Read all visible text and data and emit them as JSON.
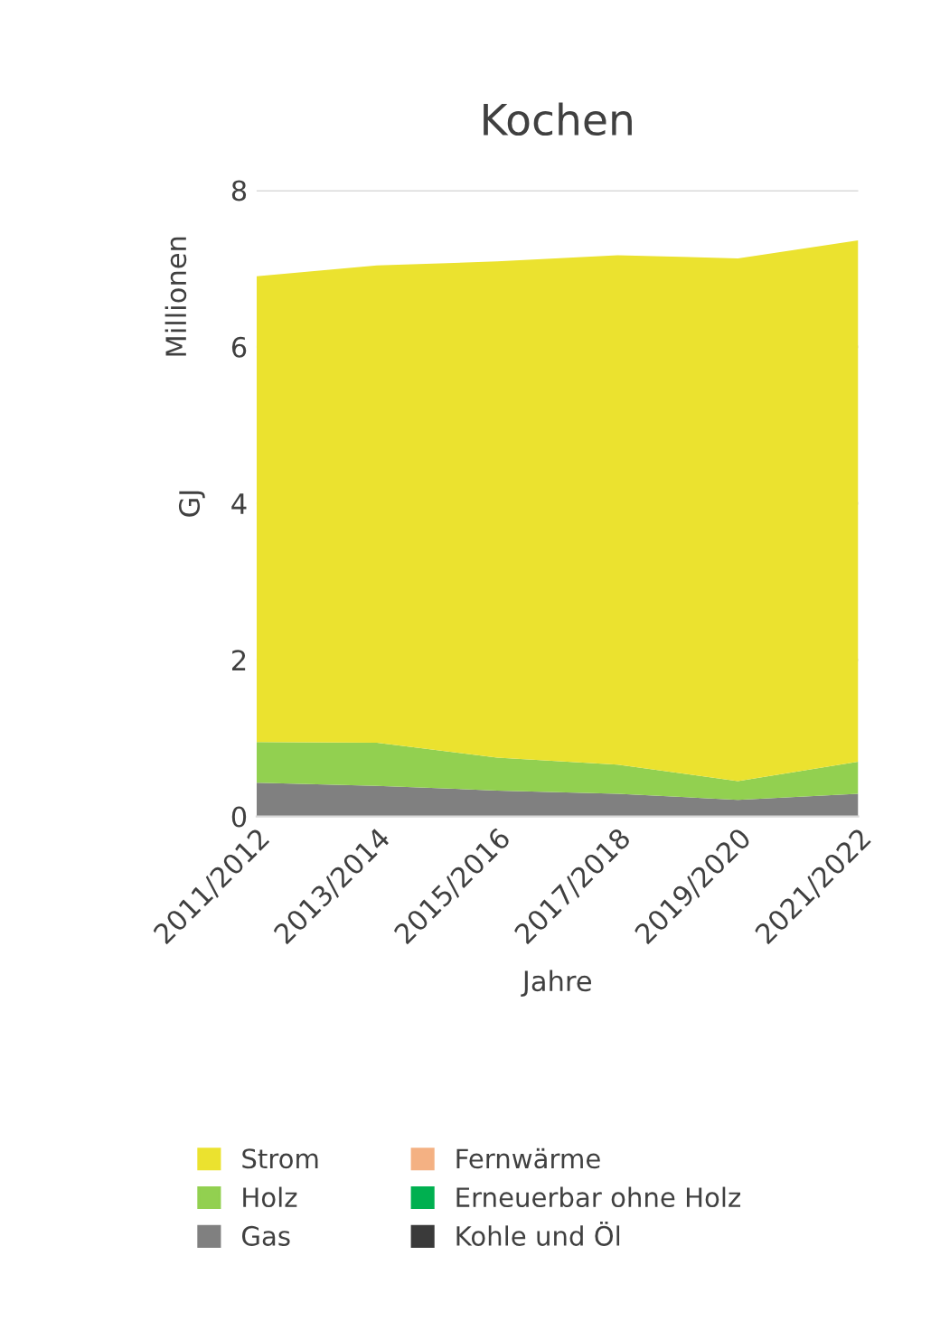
{
  "chart_data": {
    "type": "area",
    "title": "Kochen",
    "xlabel": "Jahre",
    "ylabel": "GJ",
    "annotations": [
      "Millionen"
    ],
    "categories": [
      "2011/2012",
      "2013/2014",
      "2015/2016",
      "2017/2018",
      "2019/2020",
      "2021/2022"
    ],
    "stacked": true,
    "ylim": [
      0,
      8
    ],
    "yticks": [
      0,
      2,
      4,
      6,
      8
    ],
    "grid": "y",
    "legend": "bottom",
    "series": [
      {
        "name": "Kohle und Öl",
        "color": "#3a3a3a",
        "values": [
          null,
          null,
          null,
          null,
          null,
          null
        ]
      },
      {
        "name": "Gas",
        "color": "#808080",
        "values": [
          0.43,
          0.39,
          0.33,
          0.29,
          0.21,
          0.29
        ]
      },
      {
        "name": "Erneuerbar ohne Holz",
        "color": "#00b050",
        "values": [
          null,
          null,
          null,
          null,
          null,
          null
        ]
      },
      {
        "name": "Holz",
        "color": "#92d050",
        "values": [
          0.52,
          0.55,
          0.42,
          0.37,
          0.24,
          0.41
        ]
      },
      {
        "name": "Fernwärme",
        "color": "#f4b183",
        "values": [
          null,
          null,
          null,
          null,
          null,
          null
        ]
      },
      {
        "name": "Strom",
        "color": "#ebe22f",
        "values": [
          5.95,
          6.1,
          6.34,
          6.51,
          6.68,
          6.66
        ]
      }
    ]
  }
}
